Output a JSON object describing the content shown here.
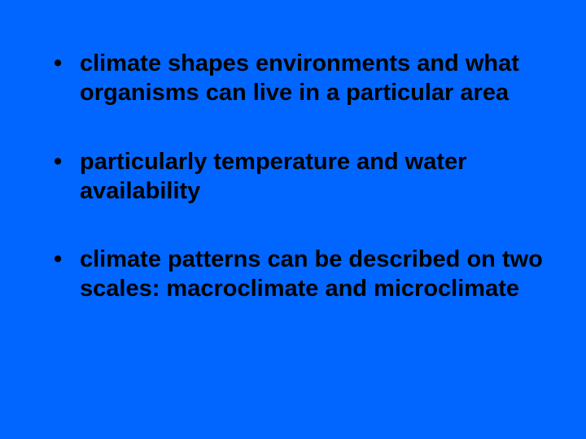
{
  "slide": {
    "background_color": "#0066ff",
    "text_color": "#000000",
    "font_family": "Arial, Helvetica, sans-serif",
    "font_weight": "bold",
    "bullet_fontsize": 29,
    "line_height": 1.25,
    "bullets": [
      "climate shapes environments and what organisms can live in a particular area",
      "particularly temperature and water availability",
      "climate patterns can be described on two scales:  macroclimate and microclimate"
    ]
  }
}
